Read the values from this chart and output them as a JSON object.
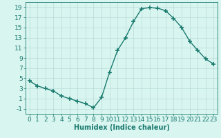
{
  "x": [
    0,
    1,
    2,
    3,
    4,
    5,
    6,
    7,
    8,
    9,
    10,
    11,
    12,
    13,
    14,
    15,
    16,
    17,
    18,
    19,
    20,
    21,
    22,
    23
  ],
  "y": [
    4.5,
    3.5,
    3.0,
    2.5,
    1.5,
    1.0,
    0.5,
    0.0,
    -0.8,
    1.2,
    6.2,
    10.5,
    13.0,
    16.2,
    18.7,
    18.9,
    18.8,
    18.3,
    16.8,
    15.0,
    12.3,
    10.5,
    8.8,
    7.8
  ],
  "line_color": "#1a7a6e",
  "marker": "+",
  "marker_size": 4,
  "linewidth": 1.0,
  "bg_color": "#d8f5f0",
  "grid_color": "#b8dbd8",
  "xlabel": "Humidex (Indice chaleur)",
  "xlim": [
    -0.5,
    23.5
  ],
  "ylim": [
    -2,
    20
  ],
  "yticks": [
    -1,
    1,
    3,
    5,
    7,
    9,
    11,
    13,
    15,
    17,
    19
  ],
  "xticks": [
    0,
    1,
    2,
    3,
    4,
    5,
    6,
    7,
    8,
    9,
    10,
    11,
    12,
    13,
    14,
    15,
    16,
    17,
    18,
    19,
    20,
    21,
    22,
    23
  ],
  "xlabel_fontsize": 7,
  "tick_fontsize": 6.5
}
